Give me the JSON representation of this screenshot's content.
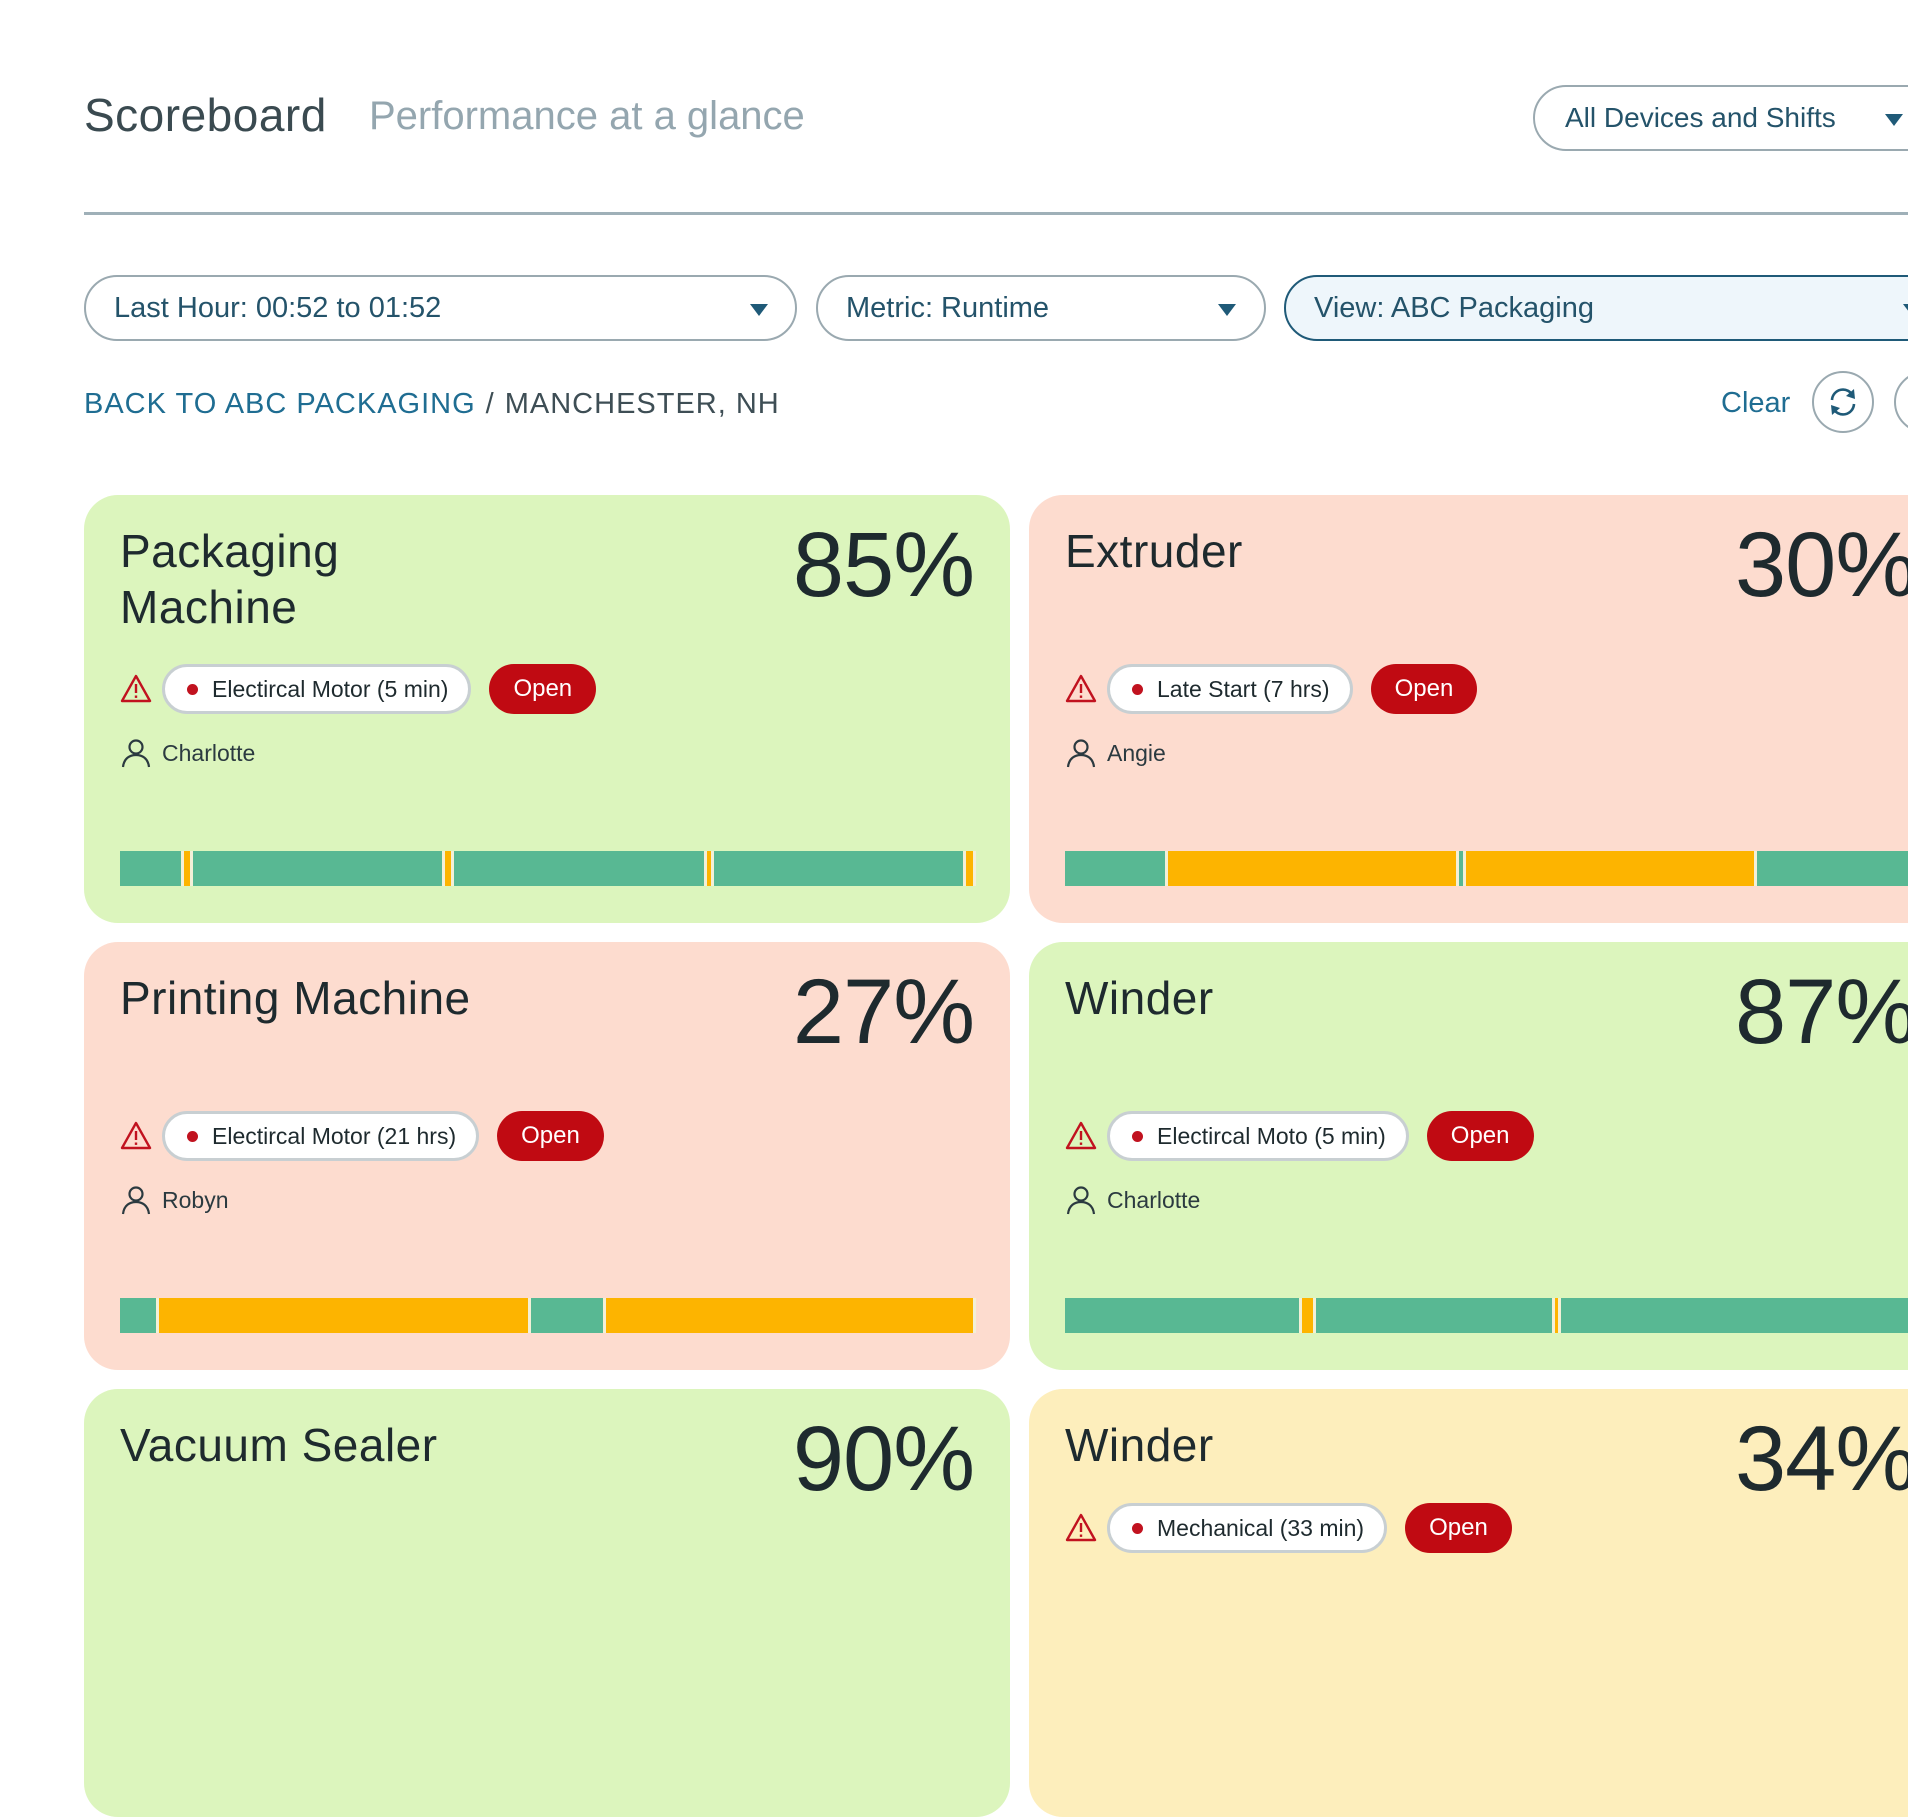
{
  "header": {
    "title": "Scoreboard",
    "subtitle": "Performance at a glance",
    "devices_select": "All Devices and Shifts"
  },
  "filters": {
    "time": "Last Hour: 00:52 to 01:52",
    "metric": "Metric: Runtime",
    "view": "View: ABC Packaging"
  },
  "breadcrumb": {
    "back_link": "BACK TO ABC PACKAGING",
    "separator": "/",
    "current": "MANCHESTER, NH"
  },
  "actions": {
    "clear_label": "Clear",
    "refresh_icon": "refresh-icon"
  },
  "colors": {
    "good": "#dcf5bd",
    "bad": "#fddccf",
    "warning": "#fdeebc",
    "running": "#58b893",
    "idle": "#fdb400",
    "open_button": "#c00a12"
  },
  "cards": [
    {
      "name": "Packaging Machine",
      "percent": "85%",
      "status": "good",
      "alert": "Electircal Motor (5 min)",
      "open_label": "Open",
      "operator": "Charlotte",
      "timeline": [
        {
          "state": "run",
          "share": 0.075
        },
        {
          "state": "idle",
          "share": 0.01
        },
        {
          "state": "run",
          "share": 0.295
        },
        {
          "state": "idle",
          "share": 0.01
        },
        {
          "state": "run",
          "share": 0.295
        },
        {
          "state": "idle",
          "share": 0.008
        },
        {
          "state": "run",
          "share": 0.295
        },
        {
          "state": "idle",
          "share": 0.012
        }
      ]
    },
    {
      "name": "Extruder",
      "percent": "30%",
      "status": "bad",
      "alert": "Late Start (7 hrs)",
      "open_label": "Open",
      "operator": "Angie",
      "timeline": [
        {
          "state": "run",
          "share": 0.12
        },
        {
          "state": "idle",
          "share": 0.34
        },
        {
          "state": "run",
          "share": 0.008
        },
        {
          "state": "idle",
          "share": 0.34
        },
        {
          "state": "run",
          "share": 0.19
        }
      ]
    },
    {
      "name": "Printing Machine",
      "percent": "27%",
      "status": "bad",
      "alert": "Electircal Motor (21 hrs)",
      "open_label": "Open",
      "operator": "Robyn",
      "timeline": [
        {
          "state": "run",
          "share": 0.046
        },
        {
          "state": "idle",
          "share": 0.434
        },
        {
          "state": "run",
          "share": 0.088
        },
        {
          "state": "idle",
          "share": 0.432
        }
      ]
    },
    {
      "name": "Winder",
      "percent": "87%",
      "status": "good",
      "alert": "Electircal Moto (5 min)",
      "open_label": "Open",
      "operator": "Charlotte",
      "timeline": [
        {
          "state": "run",
          "share": 0.277
        },
        {
          "state": "idle",
          "share": 0.016
        },
        {
          "state": "run",
          "share": 0.28
        },
        {
          "state": "idle",
          "share": 0.005
        },
        {
          "state": "run",
          "share": 0.42
        }
      ]
    },
    {
      "name": "Vacuum Sealer",
      "percent": "90%",
      "status": "good"
    },
    {
      "name": "Winder",
      "percent": "34%",
      "status": "warning",
      "alert": "Mechanical (33 min)",
      "open_label": "Open"
    }
  ]
}
